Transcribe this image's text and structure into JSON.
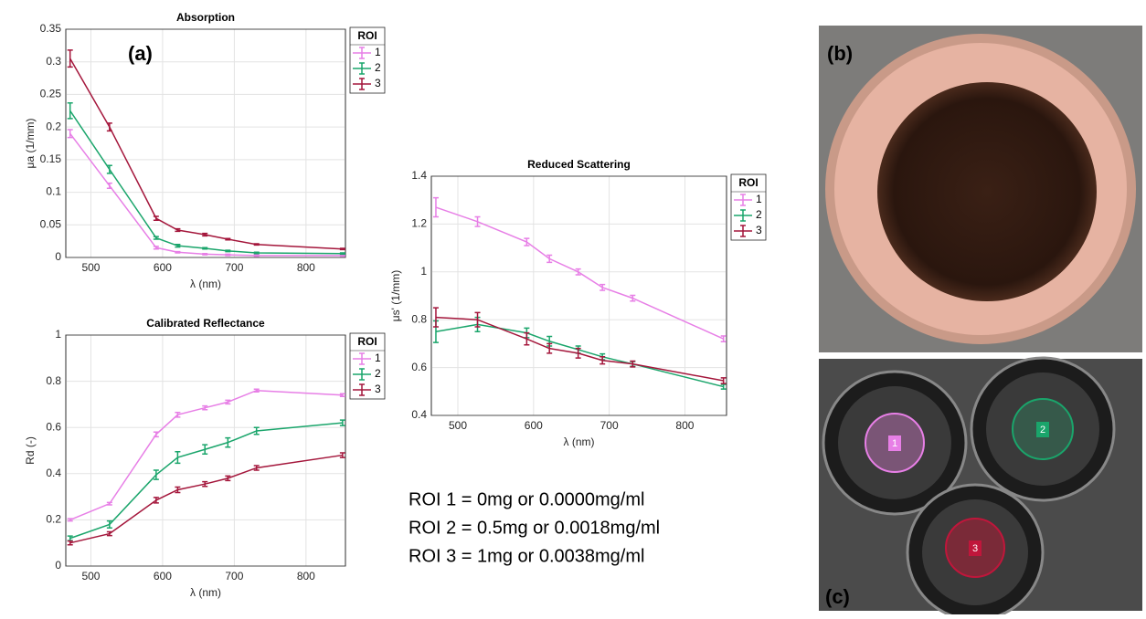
{
  "chart_data": [
    {
      "type": "line",
      "title": "Absorption",
      "annotation": "(a)",
      "x_label": "λ (nm)",
      "y_label": "μa (1/mm)",
      "legend_title": "ROI",
      "x": [
        471,
        526,
        591,
        621,
        659,
        691,
        731,
        851
      ],
      "xlim": [
        465,
        855
      ],
      "xticks": [
        500,
        600,
        700,
        800
      ],
      "ylim": [
        0,
        0.35
      ],
      "yticks": [
        0,
        0.05,
        0.1,
        0.15,
        0.2,
        0.25,
        0.3,
        0.35
      ],
      "grid": true,
      "legend": "outside-right",
      "series": [
        {
          "name": "1",
          "color": "#e77fe6",
          "values": [
            0.19,
            0.11,
            0.015,
            0.008,
            0.005,
            0.004,
            0.003,
            0.003
          ],
          "errors": [
            0.006,
            0.004,
            0.002,
            0.001,
            0.001,
            0.001,
            0.001,
            0.001
          ]
        },
        {
          "name": "2",
          "color": "#1aa56b",
          "values": [
            0.225,
            0.135,
            0.03,
            0.018,
            0.014,
            0.01,
            0.007,
            0.006
          ],
          "errors": [
            0.012,
            0.006,
            0.002,
            0.002,
            0.001,
            0.001,
            0.001,
            0.001
          ]
        },
        {
          "name": "3",
          "color": "#a4163b",
          "values": [
            0.305,
            0.2,
            0.06,
            0.042,
            0.035,
            0.028,
            0.02,
            0.013
          ],
          "errors": [
            0.013,
            0.006,
            0.003,
            0.002,
            0.002,
            0.001,
            0.001,
            0.001
          ]
        }
      ]
    },
    {
      "type": "line",
      "title": "Calibrated Reflectance",
      "x_label": "λ (nm)",
      "y_label": "Rd (-)",
      "legend_title": "ROI",
      "x": [
        471,
        526,
        591,
        621,
        659,
        691,
        731,
        851
      ],
      "xlim": [
        465,
        855
      ],
      "xticks": [
        500,
        600,
        700,
        800
      ],
      "ylim": [
        0,
        1
      ],
      "yticks": [
        0,
        0.2,
        0.4,
        0.6,
        0.8,
        1
      ],
      "grid": true,
      "legend": "outside-right",
      "series": [
        {
          "name": "1",
          "color": "#e77fe6",
          "values": [
            0.2,
            0.27,
            0.57,
            0.655,
            0.685,
            0.71,
            0.76,
            0.74
          ],
          "errors": [
            0.005,
            0.005,
            0.01,
            0.01,
            0.008,
            0.008,
            0.006,
            0.006
          ]
        },
        {
          "name": "2",
          "color": "#1aa56b",
          "values": [
            0.12,
            0.18,
            0.395,
            0.47,
            0.505,
            0.535,
            0.585,
            0.62
          ],
          "errors": [
            0.01,
            0.015,
            0.02,
            0.025,
            0.02,
            0.02,
            0.015,
            0.012
          ]
        },
        {
          "name": "3",
          "color": "#a4163b",
          "values": [
            0.1,
            0.14,
            0.285,
            0.33,
            0.355,
            0.38,
            0.425,
            0.48
          ],
          "errors": [
            0.008,
            0.008,
            0.012,
            0.012,
            0.01,
            0.01,
            0.01,
            0.01
          ]
        }
      ]
    },
    {
      "type": "line",
      "title": "Reduced Scattering",
      "x_label": "λ (nm)",
      "y_label": "μs' (1/mm)",
      "legend_title": "ROI",
      "x": [
        471,
        526,
        591,
        621,
        659,
        691,
        731,
        851
      ],
      "xlim": [
        465,
        855
      ],
      "xticks": [
        500,
        600,
        700,
        800
      ],
      "ylim": [
        0.4,
        1.4
      ],
      "yticks": [
        0.4,
        0.6,
        0.8,
        1,
        1.2,
        1.4
      ],
      "grid": true,
      "legend": "outside-right",
      "series": [
        {
          "name": "1",
          "color": "#e77fe6",
          "values": [
            1.27,
            1.21,
            1.125,
            1.055,
            1.0,
            0.935,
            0.89,
            0.72
          ],
          "errors": [
            0.04,
            0.02,
            0.015,
            0.015,
            0.012,
            0.012,
            0.012,
            0.012
          ]
        },
        {
          "name": "2",
          "color": "#1aa56b",
          "values": [
            0.75,
            0.78,
            0.745,
            0.71,
            0.675,
            0.645,
            0.615,
            0.52
          ],
          "errors": [
            0.045,
            0.03,
            0.02,
            0.02,
            0.015,
            0.012,
            0.01,
            0.01
          ]
        },
        {
          "name": "3",
          "color": "#a4163b",
          "values": [
            0.81,
            0.8,
            0.72,
            0.68,
            0.66,
            0.63,
            0.615,
            0.545
          ],
          "errors": [
            0.04,
            0.03,
            0.025,
            0.02,
            0.02,
            0.015,
            0.012,
            0.012
          ]
        }
      ]
    }
  ],
  "roi_notes": [
    "ROI 1 = 0mg or 0.0000mg/ml",
    "ROI 2 = 0.5mg or 0.0018mg/ml",
    "ROI 3 = 1mg or 0.0038mg/ml"
  ],
  "panel_labels": {
    "b": "(b)",
    "c": "(c)"
  },
  "image_c_roi_labels": [
    "1",
    "2",
    "3"
  ]
}
